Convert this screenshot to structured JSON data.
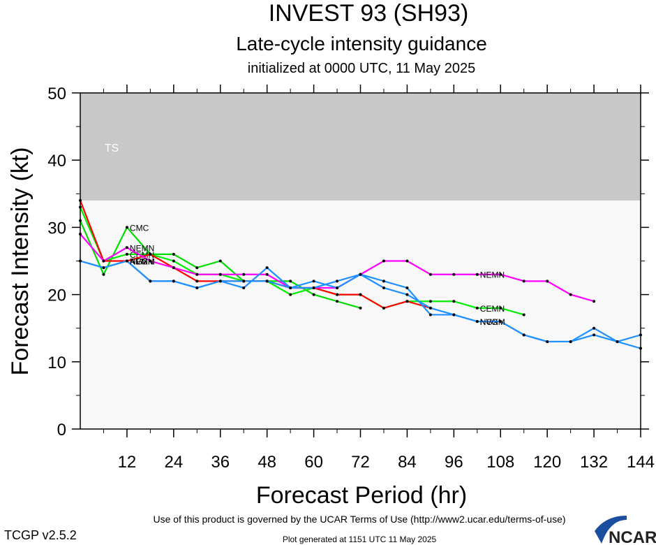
{
  "chart_data": {
    "type": "line",
    "title": "INVEST 93 (SH93)",
    "subtitle": "Late-cycle intensity guidance",
    "subtitle2": "initialized at 0000 UTC, 11 May 2025",
    "xlabel": "Forecast Period (hr)",
    "ylabel": "Forecast Intensity (kt)",
    "xlim": [
      0,
      144
    ],
    "ylim": [
      0,
      50
    ],
    "xticks": [
      12,
      24,
      36,
      48,
      60,
      72,
      84,
      96,
      108,
      120,
      132,
      144
    ],
    "yticks": [
      0,
      10,
      20,
      30,
      40,
      50
    ],
    "bands": [
      {
        "label": "TS",
        "from": 34,
        "to": 50,
        "color": "#c8c8c8"
      }
    ],
    "series": [
      {
        "name": "CMC",
        "color": "#00dd00",
        "x": [
          0,
          6,
          12,
          18,
          24,
          30,
          36,
          42,
          48,
          54,
          60,
          66,
          72
        ],
        "y": [
          31,
          23,
          30,
          26,
          26,
          24,
          25,
          22,
          22,
          22,
          20,
          19,
          18
        ]
      },
      {
        "name": "CEMN",
        "color": "#00ee00",
        "x": [
          0,
          6,
          12,
          18,
          24,
          30,
          36,
          42,
          48,
          54,
          60,
          66,
          72,
          78,
          84,
          90,
          96,
          102,
          108,
          114
        ],
        "y": [
          33,
          25,
          26,
          26,
          25,
          23,
          23,
          22,
          22,
          20,
          21,
          20,
          20,
          18,
          19,
          19,
          19,
          18,
          18,
          17
        ]
      },
      {
        "name": "AEMN",
        "color": "#ff0000",
        "x": [
          0,
          6,
          12,
          18,
          24,
          30,
          36,
          42,
          48,
          54,
          60,
          66,
          72,
          78,
          84,
          90
        ],
        "y": [
          34,
          25,
          25,
          26,
          24,
          22,
          22,
          22,
          22,
          21,
          21,
          20,
          20,
          18,
          19,
          18
        ]
      },
      {
        "name": "NEMN",
        "color": "#ff00ff",
        "x": [
          0,
          6,
          12,
          18,
          24,
          30,
          36,
          42,
          48,
          54,
          60,
          66,
          72,
          78,
          84,
          90,
          96,
          102,
          108,
          114,
          120,
          126,
          132
        ],
        "y": [
          29,
          25,
          27,
          25,
          24,
          23,
          23,
          23,
          23,
          21,
          21,
          21,
          23,
          25,
          25,
          23,
          23,
          23,
          23,
          22,
          22,
          20,
          19
        ]
      },
      {
        "name": "NGX",
        "color": "#1e90ff",
        "x": [
          0,
          6,
          12,
          18,
          24,
          30,
          36,
          42,
          48,
          54,
          60,
          66,
          72,
          78,
          84,
          90,
          96,
          102,
          108,
          114,
          120,
          126,
          132,
          138,
          144
        ],
        "y": [
          25,
          24,
          25,
          22,
          22,
          21,
          22,
          21,
          24,
          21,
          21,
          22,
          23,
          21,
          20,
          18,
          17,
          16,
          16,
          14,
          13,
          13,
          15,
          13,
          12
        ]
      },
      {
        "name": "NVGM",
        "color": "#1e90ff",
        "x": [
          0,
          6,
          12,
          18,
          24,
          30,
          36,
          42,
          48,
          54,
          60,
          66,
          72,
          78,
          84,
          90,
          96,
          102,
          108,
          114,
          120,
          126,
          132,
          138,
          144
        ],
        "y": [
          25,
          24,
          25,
          22,
          22,
          21,
          22,
          22,
          22,
          21,
          22,
          21,
          23,
          22,
          21,
          17,
          17,
          16,
          16,
          14,
          13,
          13,
          14,
          13,
          14
        ]
      }
    ]
  },
  "footer": {
    "version": "TCGP v2.5.2",
    "terms": "Use of this product is governed by the UCAR Terms of Use (http://www2.ucar.edu/terms-of-use)",
    "generated": "Plot generated at 1151 UTC   11 May 2025",
    "logo": "NCAR"
  }
}
